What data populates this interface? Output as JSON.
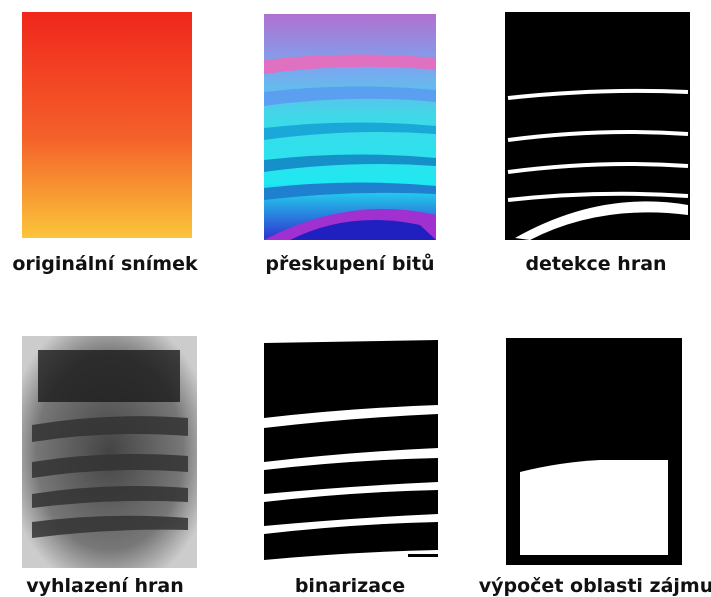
{
  "panels": [
    {
      "caption": "originální snímek"
    },
    {
      "caption": "přeskupení bitů"
    },
    {
      "caption": "detekce hran"
    },
    {
      "caption": "vyhlazení hran"
    },
    {
      "caption": "binarizace"
    },
    {
      "caption": "výpočet oblasti zájmu"
    }
  ]
}
